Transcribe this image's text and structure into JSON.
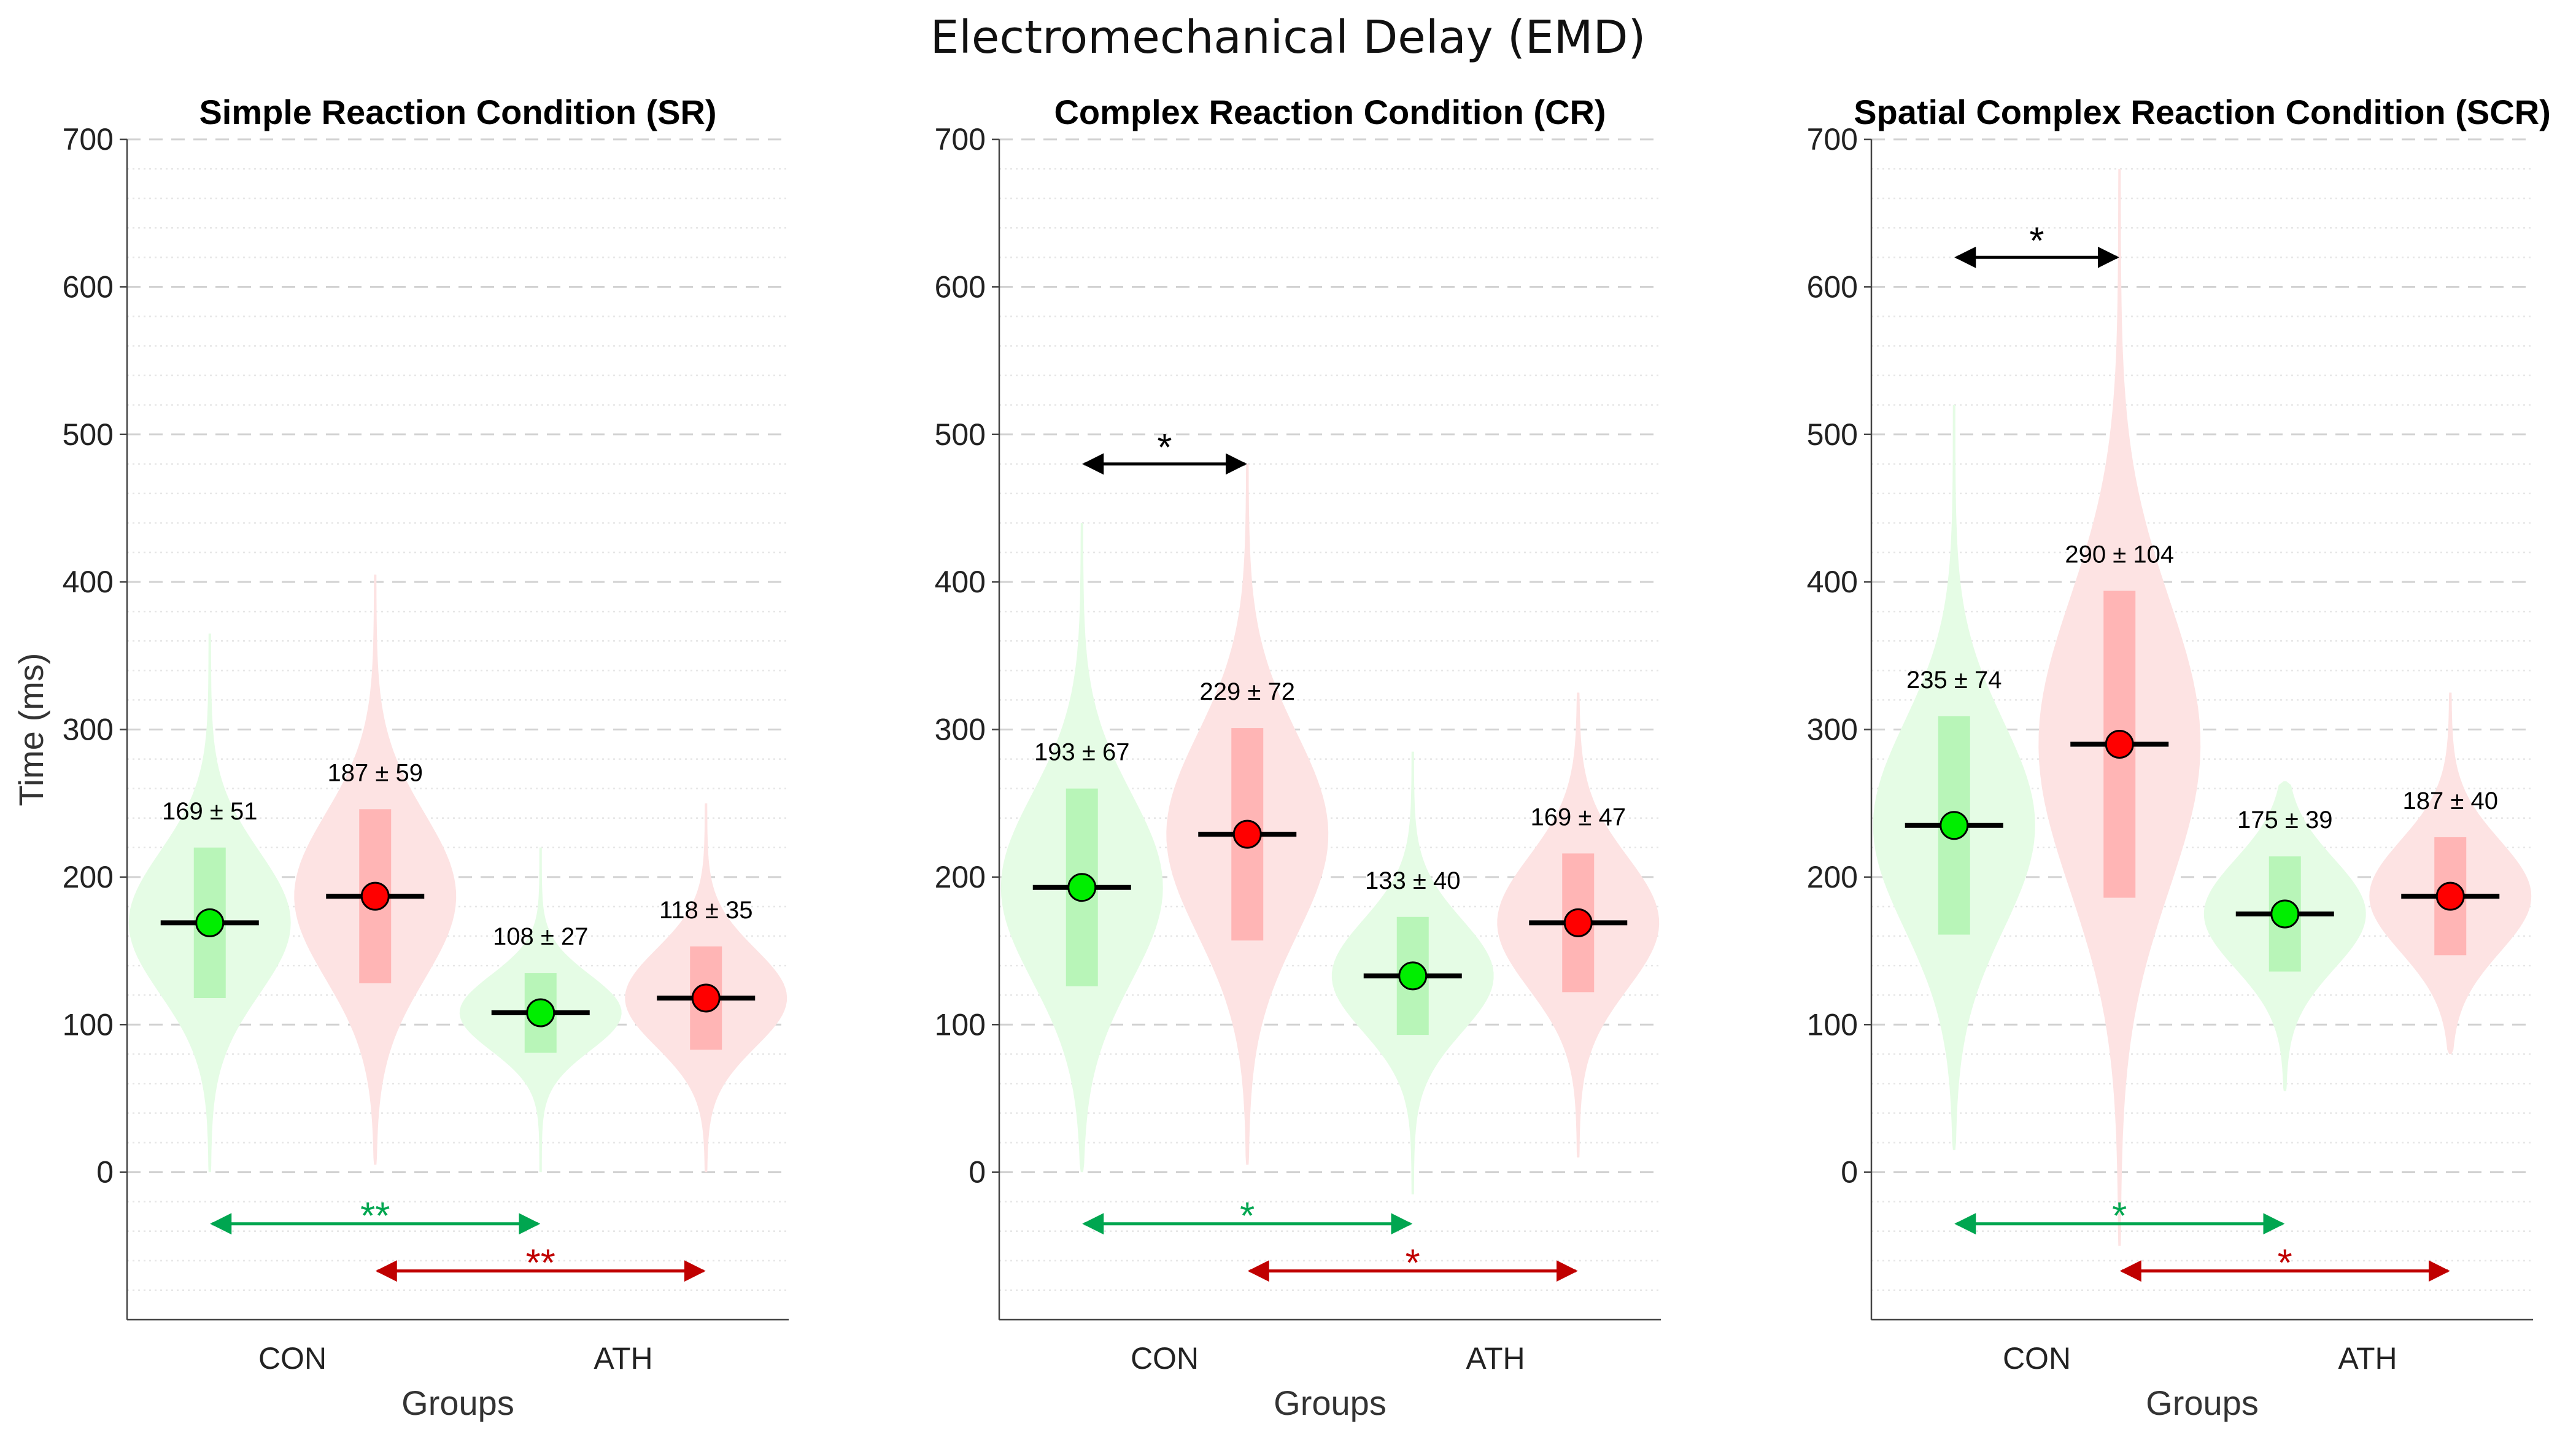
{
  "figure": {
    "suptitle": "Electromechanical Delay (EMD)",
    "ylabel": "Time (ms)",
    "xlabel": "Groups",
    "yticks": [
      0,
      100,
      200,
      300,
      400,
      500,
      600,
      700
    ],
    "ylim": [
      -100,
      700
    ],
    "groups": [
      "CON",
      "ATH"
    ],
    "colors": {
      "green_marker": "#00ee00",
      "green_violin": "#e5fce5",
      "green_box": "#b8f5b8",
      "green_arrow": "#00a650",
      "red_marker": "#ff0000",
      "red_violin": "#fde3e3",
      "red_box": "#ffb5b5",
      "red_arrow": "#c00000",
      "black_arrow": "#000000"
    }
  },
  "chart_data": [
    {
      "type": "violin",
      "title": "Simple Reaction Condition (SR)",
      "categories": [
        "CON",
        "ATH"
      ],
      "series": [
        {
          "name": "CON green",
          "group": "CON",
          "color": "green",
          "mean": 169,
          "sd": 51,
          "label": "169 ± 51",
          "min": 0,
          "max": 365,
          "box": [
            118,
            220
          ]
        },
        {
          "name": "CON red",
          "group": "CON",
          "color": "red",
          "mean": 187,
          "sd": 59,
          "label": "187 ± 59",
          "min": 5,
          "max": 405,
          "box": [
            128,
            246
          ]
        },
        {
          "name": "ATH green",
          "group": "ATH",
          "color": "green",
          "mean": 108,
          "sd": 27,
          "label": "108 ± 27",
          "min": 0,
          "max": 220,
          "box": [
            81,
            135
          ]
        },
        {
          "name": "ATH red",
          "group": "ATH",
          "color": "red",
          "mean": 118,
          "sd": 35,
          "label": "118 ± 35",
          "min": 0,
          "max": 250,
          "box": [
            83,
            153
          ]
        }
      ],
      "significance": [
        {
          "from": "CON green",
          "to": "ATH green",
          "y": -35,
          "label": "**",
          "color": "green"
        },
        {
          "from": "CON red",
          "to": "ATH red",
          "y": -67,
          "label": "**",
          "color": "red"
        }
      ]
    },
    {
      "type": "violin",
      "title": "Complex Reaction Condition (CR)",
      "categories": [
        "CON",
        "ATH"
      ],
      "series": [
        {
          "name": "CON green",
          "group": "CON",
          "color": "green",
          "mean": 193,
          "sd": 67,
          "label": "193 ± 67",
          "min": 0,
          "max": 440,
          "box": [
            126,
            260
          ]
        },
        {
          "name": "CON red",
          "group": "CON",
          "color": "red",
          "mean": 229,
          "sd": 72,
          "label": "229 ± 72",
          "min": 5,
          "max": 480,
          "box": [
            157,
            301
          ]
        },
        {
          "name": "ATH green",
          "group": "ATH",
          "color": "green",
          "mean": 133,
          "sd": 40,
          "label": "133 ± 40",
          "min": -15,
          "max": 285,
          "box": [
            93,
            173
          ]
        },
        {
          "name": "ATH red",
          "group": "ATH",
          "color": "red",
          "mean": 169,
          "sd": 47,
          "label": "169 ± 47",
          "min": 10,
          "max": 325,
          "box": [
            122,
            216
          ]
        }
      ],
      "significance": [
        {
          "from": "CON green",
          "to": "CON red",
          "y": 480,
          "label": "*",
          "color": "black"
        },
        {
          "from": "CON green",
          "to": "ATH green",
          "y": -35,
          "label": "*",
          "color": "green"
        },
        {
          "from": "CON red",
          "to": "ATH red",
          "y": -67,
          "label": "*",
          "color": "red"
        }
      ]
    },
    {
      "type": "violin",
      "title": "Spatial Complex Reaction Condition (SCR)",
      "categories": [
        "CON",
        "ATH"
      ],
      "series": [
        {
          "name": "CON green",
          "group": "CON",
          "color": "green",
          "mean": 235,
          "sd": 74,
          "label": "235 ± 74",
          "min": 15,
          "max": 520,
          "box": [
            161,
            309
          ]
        },
        {
          "name": "CON red",
          "group": "CON",
          "color": "red",
          "mean": 290,
          "sd": 104,
          "label": "290 ± 104",
          "min": -50,
          "max": 680,
          "box": [
            186,
            394
          ]
        },
        {
          "name": "ATH green",
          "group": "ATH",
          "color": "green",
          "mean": 175,
          "sd": 39,
          "label": "175 ± 39",
          "min": 55,
          "max": 265,
          "box": [
            136,
            214
          ]
        },
        {
          "name": "ATH red",
          "group": "ATH",
          "color": "red",
          "mean": 187,
          "sd": 40,
          "label": "187 ± 40",
          "min": 80,
          "max": 325,
          "box": [
            147,
            227
          ]
        }
      ],
      "significance": [
        {
          "from": "CON green",
          "to": "CON red",
          "y": 620,
          "label": "*",
          "color": "black"
        },
        {
          "from": "CON green",
          "to": "ATH green",
          "y": -35,
          "label": "*",
          "color": "green"
        },
        {
          "from": "CON red",
          "to": "ATH red",
          "y": -67,
          "label": "*",
          "color": "red"
        }
      ]
    }
  ]
}
